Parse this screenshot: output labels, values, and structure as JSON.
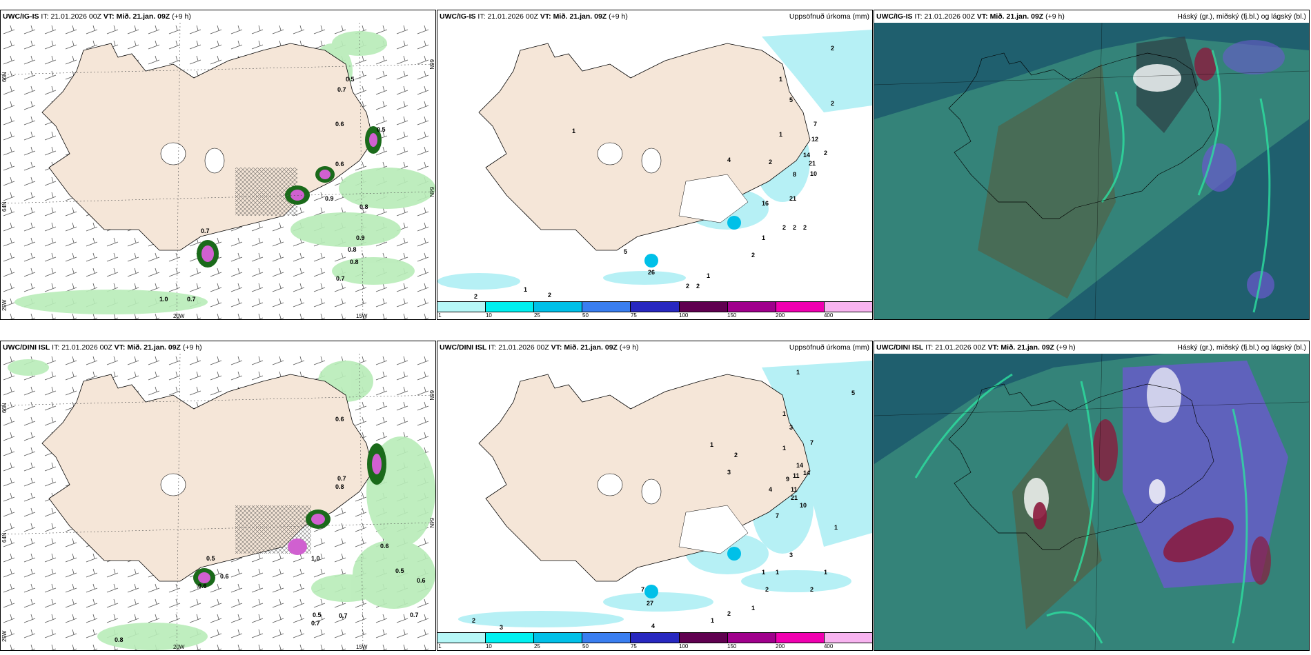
{
  "panels": [
    {
      "id": "ig-wind",
      "model": "UWC/IG-IS",
      "it_label": "IT:",
      "it_value": "21.01.2026 00Z",
      "vt_label": "VT:",
      "vt_value": "Mið. 21.jan. 09Z",
      "lead": "(+9 h)",
      "right_title": "",
      "lat_labels": [
        "66N",
        "64N",
        "66N",
        "64N"
      ],
      "lon_labels": [
        "25W",
        "20W",
        "15W"
      ],
      "values": [
        "0.5",
        "0.7",
        "0.6",
        "0.5",
        "0.6",
        "0.7",
        "0.9",
        "0.8",
        "0.8",
        "0.7",
        "0.7",
        "1.0",
        "0.9",
        "0.8"
      ]
    },
    {
      "id": "ig-precip",
      "model": "UWC/IG-IS",
      "it_label": "IT:",
      "it_value": "21.01.2026 00Z",
      "vt_label": "VT:",
      "vt_value": "Mið. 21.jan. 09Z",
      "lead": "(+9 h)",
      "right_title": "Uppsöfnuð úrkoma (mm)",
      "values": [
        "2",
        "1",
        "5",
        "2",
        "7",
        "12",
        "2",
        "1",
        "14",
        "21",
        "10",
        "8",
        "2",
        "16",
        "21",
        "4",
        "2",
        "2",
        "2",
        "1",
        "5",
        "26",
        "1",
        "2",
        "2",
        "2",
        "1",
        "1",
        "2",
        "2"
      ]
    },
    {
      "id": "ig-cloud",
      "model": "UWC/IG-IS",
      "it_label": "IT:",
      "it_value": "21.01.2026 00Z",
      "vt_label": "VT:",
      "vt_value": "Mið. 21.jan. 09Z",
      "lead": "(+9 h)",
      "right_title": "Háský (gr.), miðský (fj.bl.) og lágský (bl.)"
    },
    {
      "id": "dini-wind",
      "model": "UWC/DINI ISL",
      "it_label": "IT:",
      "it_value": "21.01.2026 00Z",
      "vt_label": "VT:",
      "vt_value": "Mið. 21.jan. 09Z",
      "lead": "(+9 h)",
      "right_title": "",
      "lat_labels": [
        "66N",
        "64N",
        "66N",
        "64N"
      ],
      "lon_labels": [
        "25W",
        "20W",
        "15W"
      ],
      "values": [
        "0.6",
        "0.7",
        "0.8",
        "0.5",
        "0.6",
        "0.5",
        "0.6",
        "0.6",
        "0.5",
        "0.7",
        "0.7",
        "0.7",
        "0.8",
        "0.6",
        "1.0"
      ]
    },
    {
      "id": "dini-precip",
      "model": "UWC/DINI ISL",
      "it_label": "IT:",
      "it_value": "21.01.2026 00Z",
      "vt_label": "VT:",
      "vt_value": "Mið. 21.jan. 09Z",
      "lead": "(+9 h)",
      "right_title": "Uppsöfnuð úrkoma (mm)",
      "values": [
        "1",
        "5",
        "1",
        "3",
        "7",
        "1",
        "14",
        "14",
        "11",
        "9",
        "11",
        "21",
        "10",
        "4",
        "7",
        "2",
        "3",
        "1",
        "7",
        "27",
        "1",
        "2",
        "2",
        "2",
        "3",
        "1",
        "1",
        "1",
        "3",
        "4",
        "2",
        "1",
        "1"
      ]
    },
    {
      "id": "dini-cloud",
      "model": "UWC/DINI ISL",
      "it_label": "IT:",
      "it_value": "21.01.2026 00Z",
      "vt_label": "VT:",
      "vt_value": "Mið. 21.jan. 09Z",
      "lead": "(+9 h)",
      "right_title": "Háský (gr.), miðský (fj.bl.) og lágský (bl.)"
    }
  ],
  "colorbar": {
    "ticks": [
      "1",
      "10",
      "25",
      "50",
      "75",
      "100",
      "150",
      "200",
      "400"
    ],
    "colors": [
      "#b6f7f7",
      "#00f0f0",
      "#00c0e8",
      "#3a7ef0",
      "#2828c0",
      "#600050",
      "#a0008c",
      "#f000b0",
      "#f8b4f0"
    ]
  },
  "colors": {
    "land": "#f5e6d8",
    "sea": "#ffffff",
    "precip_light": "#b8ecb8",
    "precip_dark": "#1a6a1a",
    "precip_magenta": "#d060d0",
    "precip_cyan": "#b6f0f5",
    "cloud_dark": "#1f5f6e",
    "cloud_mid": "#3a8c7c",
    "cloud_high": "#5a5a3a",
    "cloud_purple": "#6a5acd",
    "cloud_red": "#8b1a3c"
  }
}
